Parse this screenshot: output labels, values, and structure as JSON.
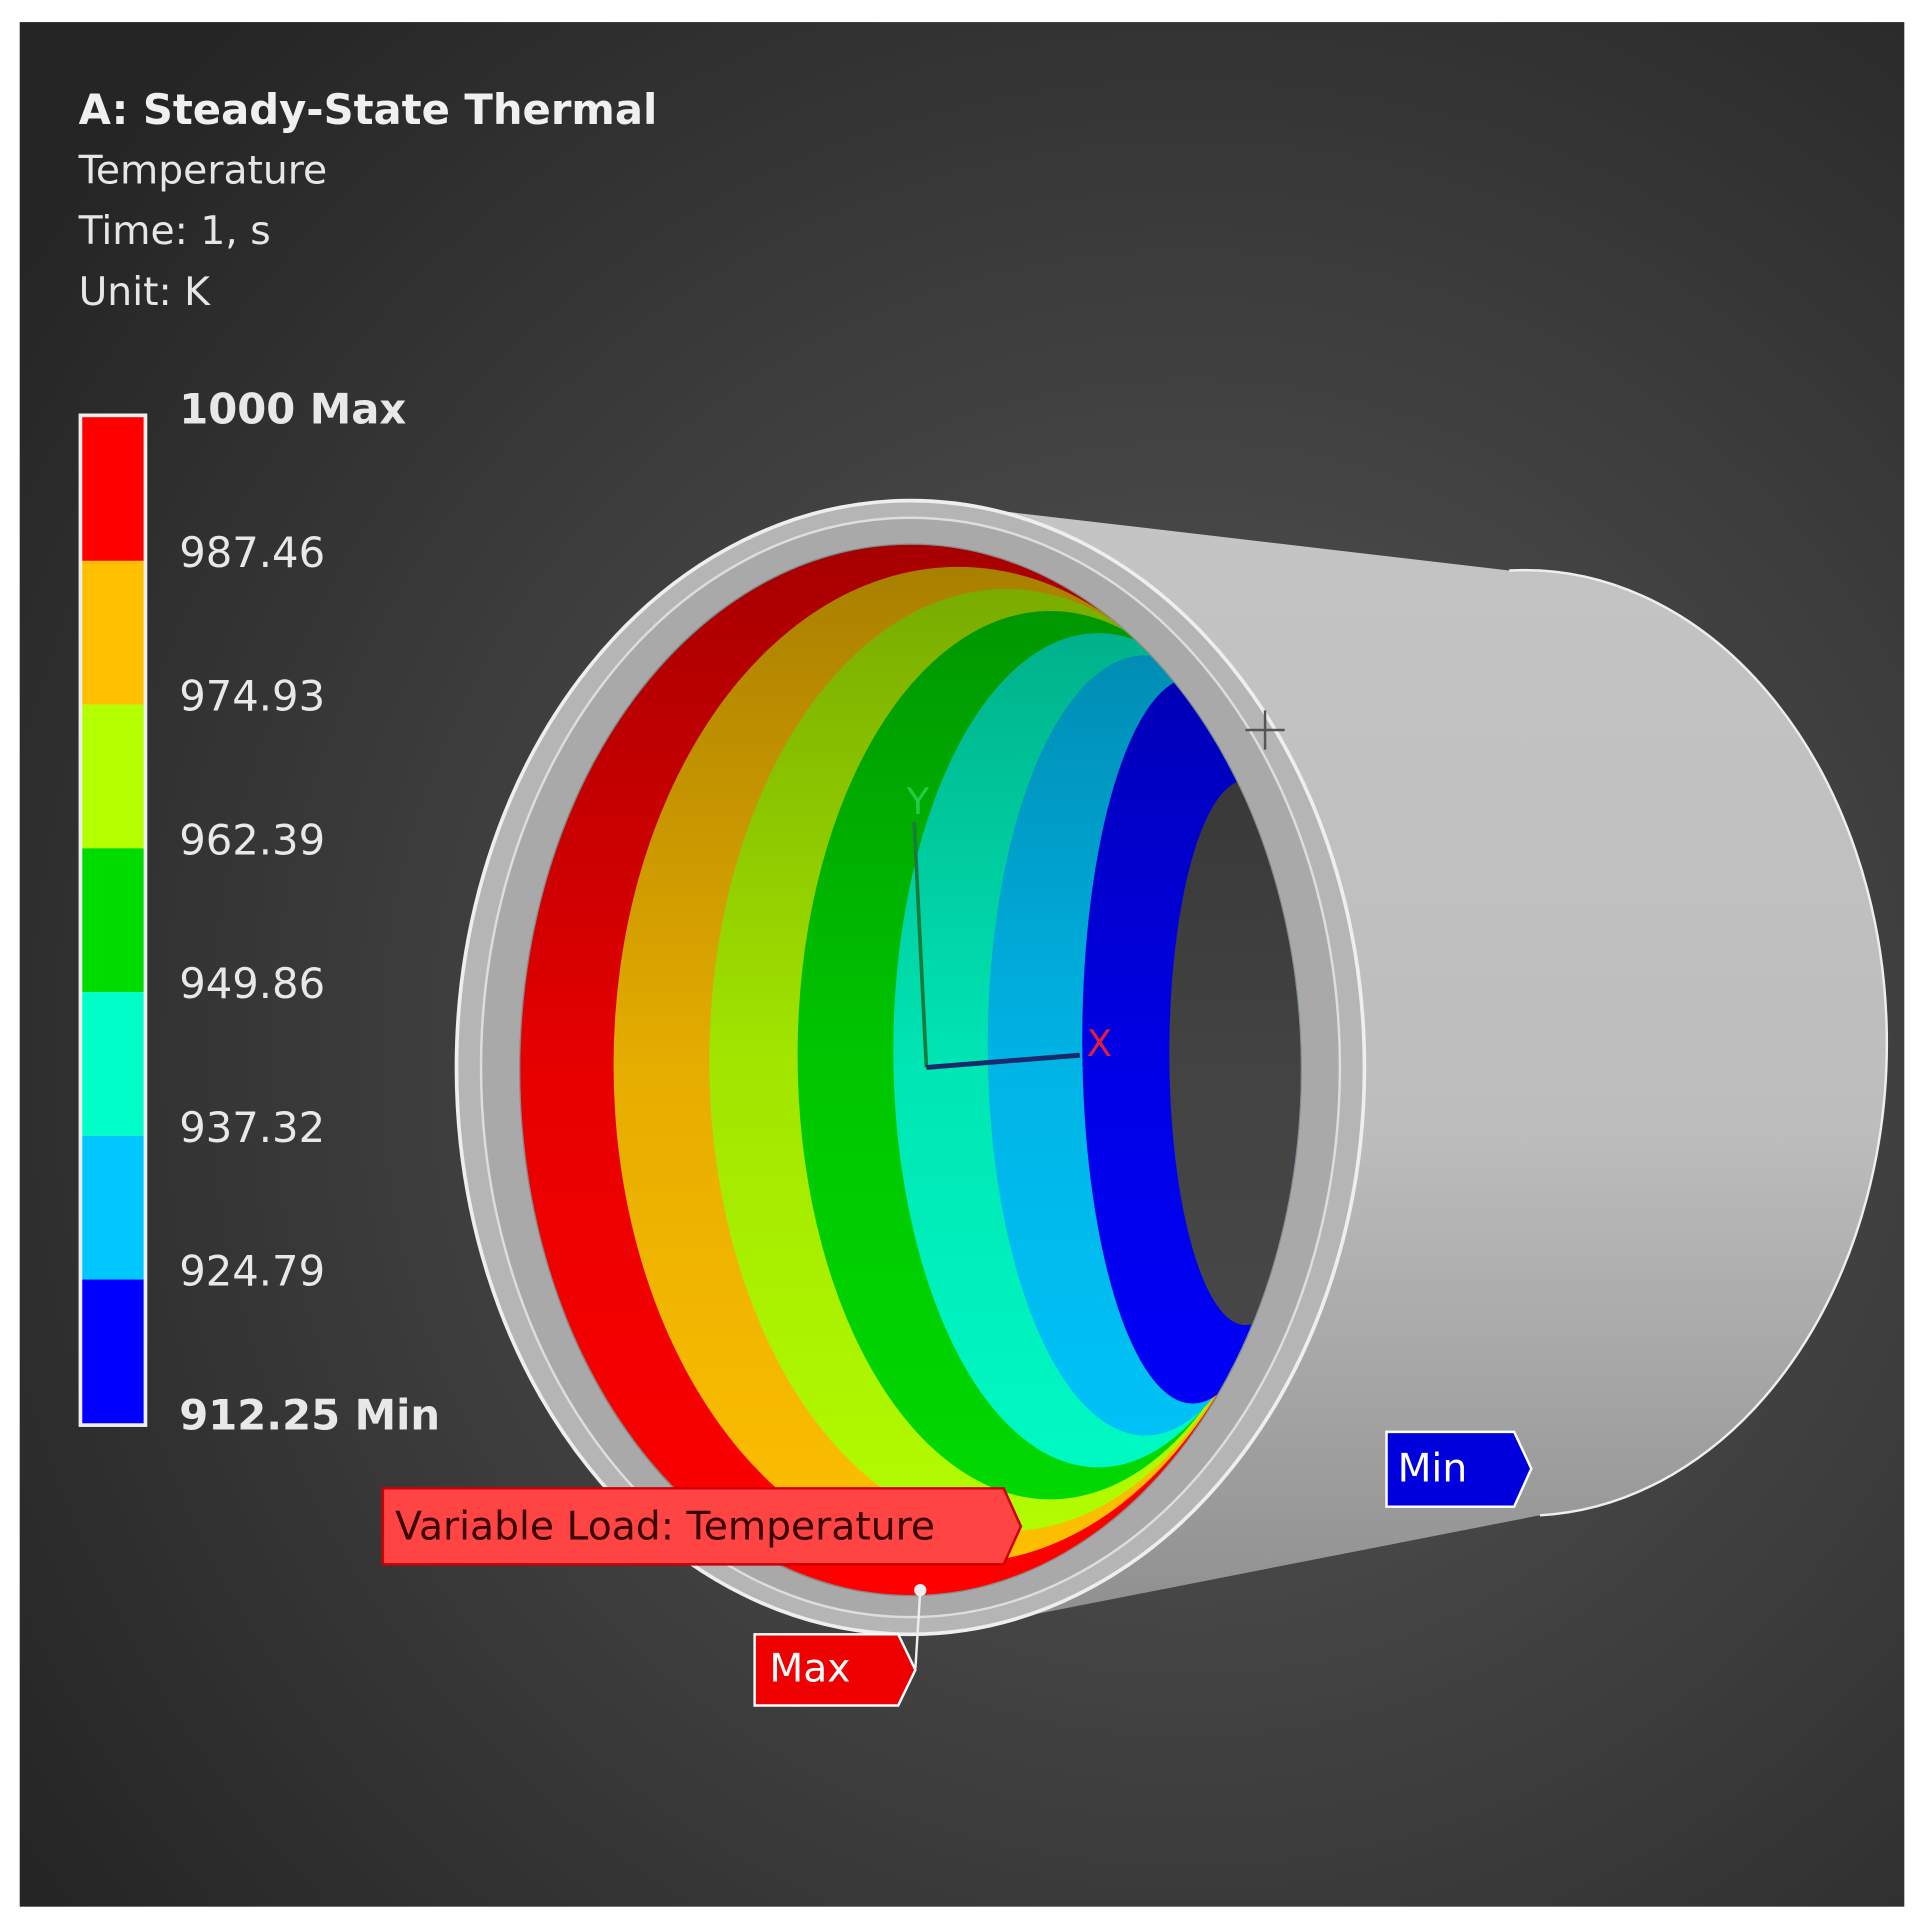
{
  "header": {
    "title": "A: Steady-State Thermal",
    "lines": [
      "Temperature",
      "Time: 1, s",
      "Unit: K"
    ]
  },
  "legend": {
    "labels": [
      "1000 Max",
      "987.46",
      "974.93",
      "962.39",
      "949.86",
      "937.32",
      "924.79",
      "912.25 Min"
    ],
    "colors": [
      "#ff0000",
      "#ffc000",
      "#b4ff00",
      "#00dc00",
      "#00ffc8",
      "#00c8ff",
      "#0000ff"
    ]
  },
  "viewport": {
    "axes": {
      "y": "Y",
      "x": "X"
    },
    "tags": {
      "load": "Variable Load: Temperature",
      "max": "Max",
      "min": "Min"
    }
  }
}
